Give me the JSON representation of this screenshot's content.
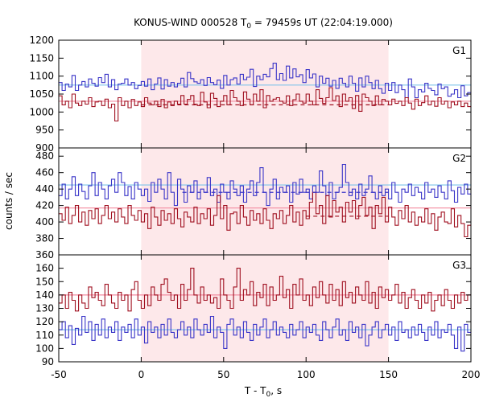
{
  "chart_data": {
    "type": "line",
    "title_main": "KONUS-WIND 000528 T",
    "title_sub": "0",
    "title_rest": " = 79459s UT (22:04:19.000)",
    "ylabel": "counts / sec",
    "xlabel_main": "T - T",
    "xlabel_sub": "0",
    "xlabel_rest": ", s",
    "xlim": [
      -50,
      200
    ],
    "xticks": [
      "-50",
      "0",
      "50",
      "100",
      "150",
      "200"
    ],
    "highlight_interval": [
      0,
      150
    ],
    "colors": {
      "blue": "#3a35c8",
      "red": "#a01020",
      "light_blue": "#7ec3ea",
      "pink": "#f28ca0",
      "highlight": "#fde8ea"
    },
    "panels": [
      {
        "label": "G1",
        "ylim": [
          900,
          1200
        ],
        "yticks": [
          900,
          950,
          1000,
          1050,
          1100,
          1150,
          1200
        ],
        "blue_mean": 1075,
        "red_mean": 1030,
        "red_dashed": 1020,
        "red_dash_range": [
          0,
          150
        ],
        "blue_values": [
          1082,
          1060,
          1078,
          1070,
          1102,
          1060,
          1075,
          1085,
          1070,
          1092,
          1080,
          1072,
          1096,
          1082,
          1105,
          1070,
          1090,
          1062,
          1078,
          1080,
          1092,
          1075,
          1082,
          1065,
          1074,
          1085,
          1072,
          1092,
          1062,
          1078,
          1095,
          1064,
          1090,
          1072,
          1082,
          1070,
          1080,
          1094,
          1070,
          1110,
          1093,
          1084,
          1080,
          1090,
          1074,
          1096,
          1082,
          1076,
          1089,
          1066,
          1102,
          1075,
          1090,
          1095,
          1078,
          1105,
          1090,
          1097,
          1119,
          1071,
          1100,
          1090,
          1105,
          1098,
          1121,
          1136,
          1090,
          1107,
          1088,
          1128,
          1095,
          1120,
          1098,
          1104,
          1082,
          1118,
          1095,
          1106,
          1070,
          1100,
          1080,
          1094,
          1072,
          1088,
          1066,
          1094,
          1080,
          1070,
          1100,
          1080,
          1058,
          1095,
          1070,
          1100,
          1082,
          1065,
          1088,
          1065,
          1052,
          1080,
          1060,
          1082,
          1054,
          1075,
          1062,
          1040,
          1092,
          1070,
          1040,
          1062,
          1056,
          1080,
          1066,
          1060,
          1048,
          1078,
          1065,
          1070,
          1044,
          1050,
          1062,
          1040,
          1073,
          1045,
          1054
        ],
        "red_values": [
          1045,
          1020,
          1030,
          1012,
          1050,
          1025,
          1018,
          1030,
          1022,
          1040,
          1015,
          1028,
          1030,
          1018,
          1036,
          1012,
          1022,
          975,
          1040,
          1018,
          1030,
          1012,
          1035,
          1018,
          1028,
          1015,
          1040,
          1025,
          1020,
          1030,
          1015,
          1035,
          1012,
          1028,
          1018,
          1030,
          1022,
          1046,
          1022,
          1035,
          1046,
          1022,
          1018,
          1055,
          1028,
          1012,
          1052,
          1038,
          1015,
          1030,
          1046,
          1020,
          1060,
          1040,
          1030,
          1018,
          1056,
          1036,
          1020,
          1050,
          1030,
          1062,
          1012,
          1046,
          1030,
          1036,
          1040,
          1030,
          1025,
          1045,
          1018,
          1034,
          1050,
          1030,
          1025,
          1050,
          1030,
          1020,
          1062,
          1038,
          1024,
          1040,
          1068,
          1032,
          1045,
          1015,
          1050,
          1030,
          1040,
          1010,
          1046,
          1002,
          1050,
          1040,
          1030,
          1018,
          1045,
          1020,
          1035,
          1030,
          1020,
          1036,
          1024,
          1030,
          1018,
          1040,
          1025,
          1008,
          1036,
          1018,
          1026,
          1045,
          1020,
          1030,
          1016,
          1040,
          1022,
          1030,
          1012,
          1028,
          1020,
          1030,
          1015,
          1025,
          1015
        ]
      },
      {
        "label": "G2",
        "ylim": [
          360,
          490
        ],
        "yticks": [
          360,
          380,
          400,
          420,
          440,
          460,
          480
        ],
        "blue_mean": 445,
        "red_mean": 417,
        "blue_dashed": 436,
        "red_dashed": 407,
        "blue_dash_range": [
          25,
          150
        ],
        "red_dash_range": [
          100,
          150
        ],
        "blue_values": [
          432,
          446,
          428,
          440,
          455,
          432,
          446,
          437,
          428,
          444,
          460,
          432,
          448,
          440,
          428,
          444,
          452,
          436,
          460,
          448,
          432,
          443,
          428,
          448,
          440,
          432,
          440,
          425,
          448,
          436,
          452,
          440,
          428,
          460,
          436,
          420,
          452,
          440,
          424,
          444,
          436,
          450,
          428,
          440,
          436,
          454,
          432,
          440,
          424,
          446,
          436,
          428,
          450,
          440,
          432,
          444,
          424,
          440,
          450,
          432,
          448,
          466,
          436,
          420,
          440,
          452,
          428,
          442,
          436,
          444,
          424,
          448,
          434,
          452,
          436,
          440,
          428,
          444,
          436,
          462,
          444,
          432,
          448,
          428,
          436,
          442,
          470,
          448,
          432,
          440,
          428,
          446,
          432,
          440,
          456,
          436,
          428,
          444,
          432,
          440,
          428,
          448,
          436,
          424,
          440,
          436,
          446,
          432,
          442,
          436,
          428,
          448,
          436,
          440,
          430,
          444,
          436,
          428,
          450,
          438,
          424,
          442,
          434,
          446,
          434
        ],
        "red_values": [
          410,
          402,
          418,
          398,
          408,
          420,
          400,
          412,
          396,
          414,
          404,
          416,
          398,
          408,
          420,
          404,
          412,
          400,
          416,
          406,
          398,
          420,
          408,
          402,
          414,
          400,
          410,
          392,
          418,
          406,
          396,
          414,
          402,
          410,
          398,
          416,
          404,
          394,
          412,
          406,
          400,
          418,
          398,
          410,
          404,
          416,
          396,
          408,
          432,
          404,
          420,
          390,
          410,
          412,
          398,
          420,
          406,
          396,
          414,
          402,
          410,
          398,
          416,
          402,
          392,
          410,
          404,
          414,
          398,
          408,
          420,
          400,
          412,
          396,
          414,
          404,
          424,
          436,
          410,
          420,
          398,
          432,
          406,
          426,
          412,
          418,
          400,
          424,
          412,
          426,
          404,
          420,
          430,
          408,
          418,
          392,
          420,
          410,
          430,
          400,
          418,
          406,
          396,
          414,
          404,
          420,
          400,
          412,
          396,
          406,
          400,
          416,
          398,
          410,
          390,
          406,
          412,
          400,
          398,
          416,
          394,
          408,
          398,
          382,
          396
        ]
      },
      {
        "label": "G3",
        "ylim": [
          90,
          170
        ],
        "yticks": [
          90,
          100,
          110,
          120,
          130,
          140,
          150,
          160
        ],
        "blue_mean": 114,
        "red_mean": 140,
        "blue_values": [
          114,
          120,
          108,
          117,
          103,
          115,
          110,
          124,
          112,
          120,
          106,
          118,
          110,
          122,
          108,
          116,
          112,
          120,
          106,
          116,
          112,
          118,
          108,
          122,
          110,
          116,
          104,
          120,
          112,
          116,
          108,
          118,
          110,
          122,
          112,
          108,
          114,
          120,
          110,
          116,
          108,
          122,
          114,
          110,
          118,
          112,
          124,
          108,
          116,
          112,
          100,
          118,
          122,
          110,
          116,
          108,
          120,
          112,
          106,
          118,
          110,
          116,
          122,
          108,
          114,
          120,
          110,
          116,
          112,
          108,
          118,
          110,
          114,
          120,
          108,
          116,
          112,
          118,
          110,
          106,
          120,
          114,
          108,
          116,
          122,
          110,
          114,
          106,
          120,
          112,
          116,
          108,
          118,
          102,
          110,
          116,
          120,
          108,
          114,
          118,
          110,
          116,
          106,
          120,
          112,
          114,
          108,
          116,
          110,
          118,
          112,
          106,
          116,
          110,
          120,
          108,
          114,
          112,
          118,
          110,
          100,
          116,
          98,
          118,
          112
        ],
        "red_values": [
          134,
          140,
          130,
          142,
          136,
          128,
          140,
          134,
          130,
          146,
          138,
          142,
          136,
          132,
          148,
          140,
          134,
          130,
          142,
          136,
          140,
          128,
          144,
          150,
          136,
          130,
          140,
          132,
          146,
          140,
          136,
          148,
          152,
          142,
          136,
          140,
          130,
          148,
          136,
          144,
          160,
          140,
          134,
          146,
          136,
          140,
          134,
          138,
          130,
          152,
          140,
          136,
          130,
          146,
          160,
          136,
          144,
          140,
          150,
          132,
          142,
          138,
          148,
          132,
          146,
          136,
          140,
          154,
          138,
          144,
          130,
          148,
          140,
          152,
          136,
          140,
          132,
          146,
          138,
          150,
          140,
          134,
          148,
          136,
          144,
          132,
          150,
          138,
          142,
          134,
          146,
          140,
          136,
          150,
          134,
          142,
          130,
          146,
          138,
          144,
          136,
          140,
          148,
          134,
          142,
          130,
          138,
          144,
          136,
          130,
          140,
          134,
          142,
          128,
          136,
          140,
          132,
          144,
          136,
          130,
          140,
          134,
          142,
          136,
          140
        ]
      }
    ]
  }
}
